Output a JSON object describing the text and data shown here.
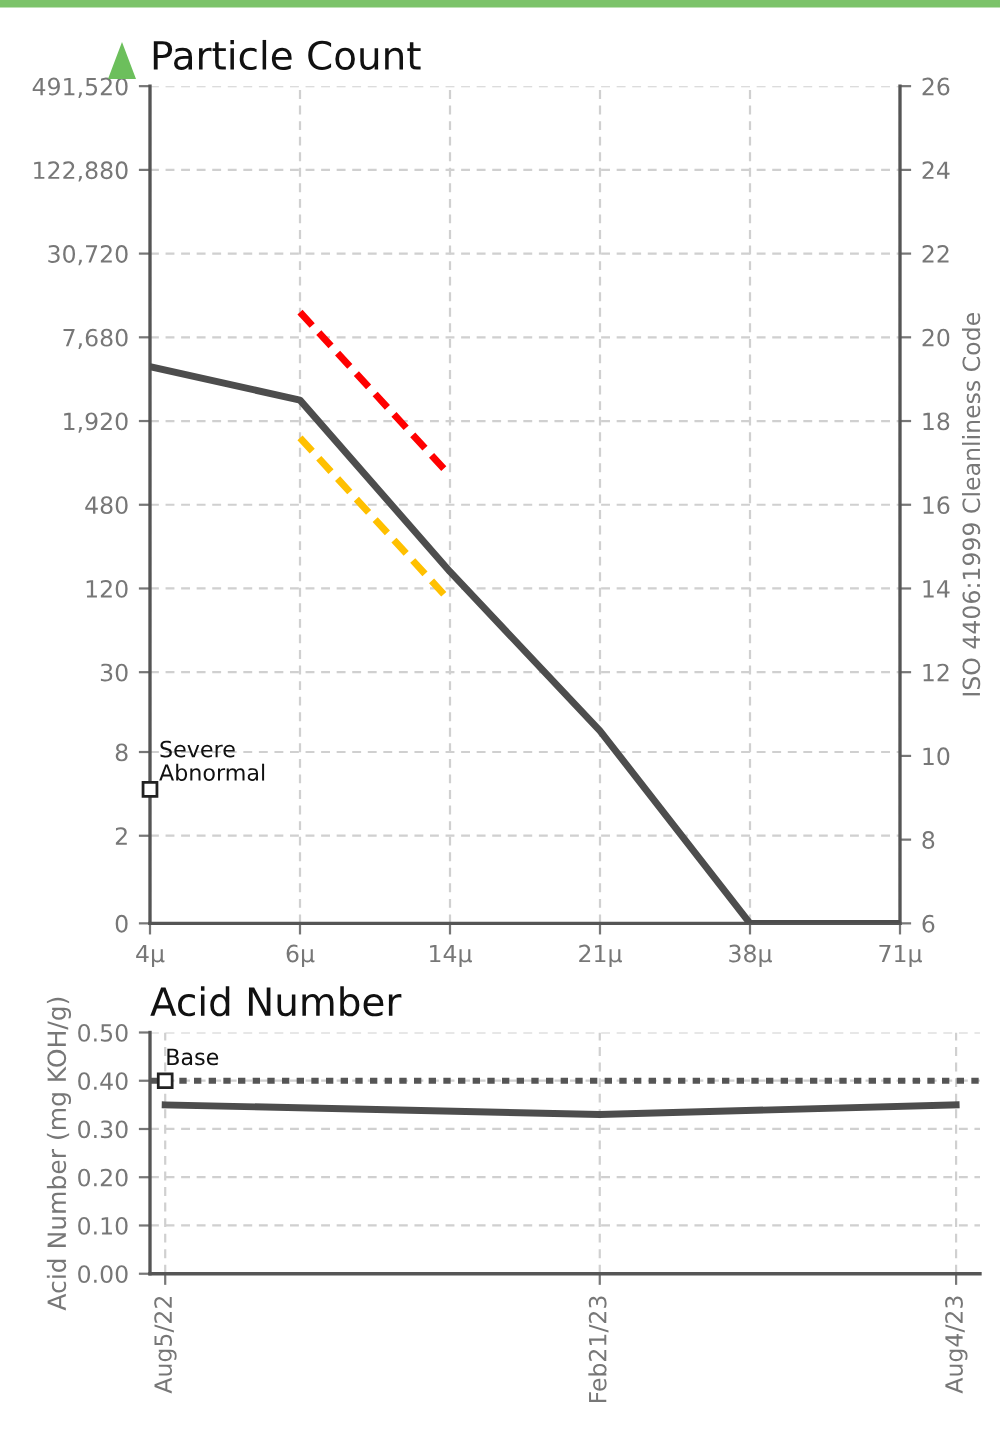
{
  "chart_data": [
    {
      "type": "line",
      "title": "Particle Count",
      "y2label": "ISO 4406:1999 Cleanliness Code",
      "categories": [
        "4μ",
        "6μ",
        "14μ",
        "21μ",
        "38μ",
        "71μ"
      ],
      "series": [
        {
          "color": "#4d4d4d",
          "axis": "y2",
          "values": [
            19.3,
            18.5,
            14.4,
            10.6,
            6,
            6
          ]
        },
        {
          "color": "#ff0000",
          "axis": "y2",
          "line_style": "dashed",
          "values": [
            null,
            20.6,
            16.7,
            null,
            null,
            null
          ]
        },
        {
          "color": "#ffc000",
          "axis": "y2",
          "line_style": "dashed",
          "values": [
            null,
            17.6,
            13.7,
            null,
            null,
            null
          ]
        }
      ],
      "ylim": [
        0.46875,
        491520
      ],
      "yticks": [
        {
          "value": 0.46875,
          "label": "0"
        },
        2,
        8,
        30,
        120,
        480,
        {
          "value": 1920,
          "label": "1,920"
        },
        {
          "value": 7680,
          "label": "7,680"
        },
        {
          "value": 30720,
          "label": "30,720"
        },
        {
          "value": 122880,
          "label": "122,880"
        },
        {
          "value": 491520,
          "label": "491,520"
        }
      ],
      "log": "y",
      "y2lim": [
        6,
        26
      ],
      "y2ticks": [
        6,
        8,
        10,
        12,
        14,
        16,
        18,
        20,
        22,
        24,
        26
      ],
      "annotations": [
        "Abnormal",
        "Severe"
      ],
      "grid": true,
      "marker": "none"
    },
    {
      "type": "line",
      "title": "Acid Number",
      "ylabel": "Acid Number (mg KOH/g)",
      "x": [
        "2022-08-05",
        "2023-02-21",
        "2023-08-04"
      ],
      "series": [
        {
          "color": "#4d4d4d",
          "values": [
            0.35,
            0.33,
            0.35
          ]
        }
      ],
      "xlim": [
        "2022-07-29",
        "2023-08-15"
      ],
      "xticks": [
        {
          "value": "2022-08-05",
          "label": "Aug5/22"
        },
        {
          "value": "2023-02-21",
          "label": "Feb21/23"
        },
        {
          "value": "2023-08-04",
          "label": "Aug4/23"
        }
      ],
      "ylim": [
        0,
        0.5
      ],
      "yticks": [
        {
          "value": 0,
          "label": "0.00"
        },
        {
          "value": 0.1,
          "label": "0.10"
        },
        {
          "value": 0.2,
          "label": "0.20"
        },
        {
          "value": 0.3,
          "label": "0.30"
        },
        {
          "value": 0.4,
          "label": "0.40"
        },
        {
          "value": 0.5,
          "label": "0.50"
        }
      ],
      "ref_lines": [
        {
          "axis": "y",
          "value": 0.4,
          "label": "Base",
          "color": "#555555",
          "line_style": "dotted"
        }
      ],
      "grid": true,
      "marker": "none"
    }
  ]
}
